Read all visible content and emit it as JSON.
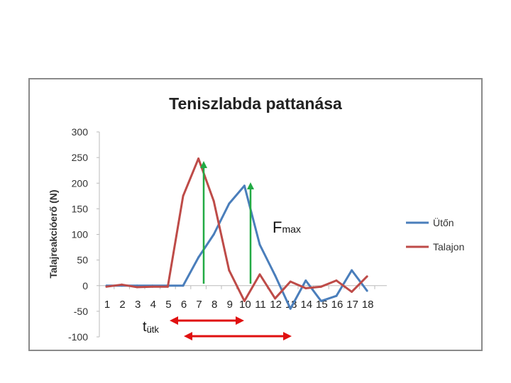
{
  "chart_data": {
    "type": "line",
    "title": "Teniszlabda pattanása",
    "xlabel": "",
    "ylabel": "Talajreakcióerő (N)",
    "ylim": [
      -100,
      300
    ],
    "yticks": [
      -100,
      -50,
      0,
      50,
      100,
      150,
      200,
      250,
      300
    ],
    "categories": [
      "1",
      "2",
      "3",
      "4",
      "5",
      "6",
      "7",
      "8",
      "9",
      "10",
      "11",
      "12",
      "13",
      "14",
      "15",
      "16",
      "17",
      "18"
    ],
    "series": [
      {
        "name": "Ütőn",
        "color": "#4a7ebb",
        "values": [
          0,
          0,
          0,
          0,
          0,
          0,
          55,
          100,
          160,
          195,
          80,
          20,
          -45,
          10,
          -30,
          -20,
          30,
          -10
        ]
      },
      {
        "name": "Talajon",
        "color": "#be4b48",
        "values": [
          -2,
          2,
          -3,
          -2,
          -2,
          175,
          248,
          165,
          30,
          -30,
          22,
          -25,
          8,
          -5,
          -2,
          10,
          -12,
          18
        ]
      }
    ],
    "legend_position": "right",
    "grid": false,
    "annotations": {
      "fmax_label": "F",
      "fmax_sub": "max",
      "t_label": "t",
      "t_sub": "ütk",
      "arrow_color_green": "#22aa44",
      "arrow_color_red": "#e01010"
    }
  }
}
